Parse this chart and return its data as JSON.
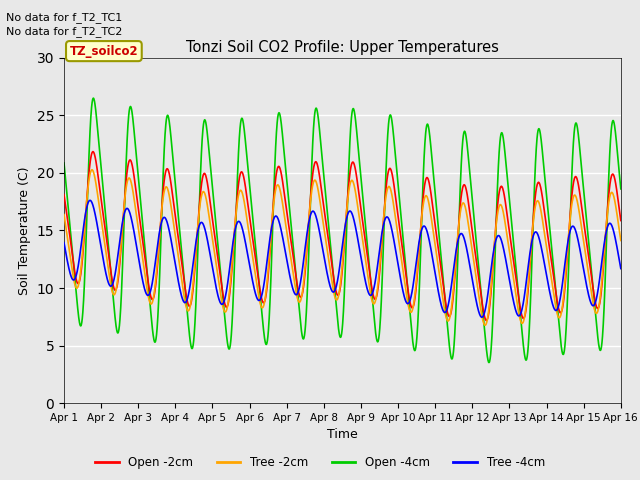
{
  "title": "Tonzi Soil CO2 Profile: Upper Temperatures",
  "xlabel": "Time",
  "ylabel": "Soil Temperature (C)",
  "ylim": [
    0,
    30
  ],
  "yticks": [
    0,
    5,
    10,
    15,
    20,
    25,
    30
  ],
  "no_data_text1": "No data for f_T2_TC1",
  "no_data_text2": "No data for f_T2_TC2",
  "legend_label": "TZ_soilco2",
  "legend_entries": [
    "Open -2cm",
    "Tree -2cm",
    "Open -4cm",
    "Tree -4cm"
  ],
  "legend_colors": [
    "#ff0000",
    "#ffa500",
    "#00cc00",
    "#0000ff"
  ],
  "line_colors": {
    "open2": "#ff0000",
    "tree2": "#ffa500",
    "open4": "#00cc00",
    "tree4": "#0000ff"
  },
  "bg_color": "#e8e8e8",
  "xtick_labels": [
    "Apr 1",
    "Apr 2",
    "Apr 3",
    "Apr 4",
    "Apr 5",
    "Apr 6",
    "Apr 7",
    "Apr 8",
    "Apr 9",
    "Apr 10",
    "Apr 11",
    "Apr 12",
    "Apr 13",
    "Apr 14",
    "Apr 15",
    "Apr 16"
  ],
  "xtick_positions": [
    0,
    1,
    2,
    3,
    4,
    5,
    6,
    7,
    8,
    9,
    10,
    11,
    12,
    13,
    14,
    15
  ]
}
